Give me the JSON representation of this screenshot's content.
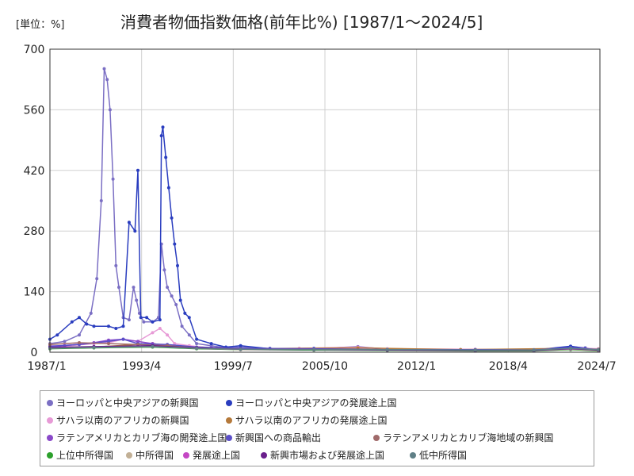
{
  "unit_label": "[単位：%]",
  "chart_data": {
    "type": "line",
    "title": "消費者物価指数価格(前年比%) [1987/1～2024/5]",
    "ylim": [
      0,
      700
    ],
    "y_ticks": [
      "0",
      "140",
      "280",
      "420",
      "560",
      "700"
    ],
    "x_tick_labels": [
      "1987/1",
      "1993/4",
      "1999/7",
      "2005/10",
      "2012/1",
      "2018/4",
      "2024/7"
    ],
    "xlim": [
      1987.0,
      2024.5
    ],
    "grid": true,
    "legend_position": "bottom",
    "series": [
      {
        "name": "ヨーロッパと中央アジアの新興国",
        "color": "#7b6fc4",
        "points": [
          [
            1987.0,
            20
          ],
          [
            1988.0,
            25
          ],
          [
            1989.0,
            40
          ],
          [
            1989.8,
            90
          ],
          [
            1990.2,
            170
          ],
          [
            1990.5,
            350
          ],
          [
            1990.7,
            655
          ],
          [
            1990.9,
            630
          ],
          [
            1991.1,
            560
          ],
          [
            1991.3,
            400
          ],
          [
            1991.5,
            200
          ],
          [
            1991.7,
            150
          ],
          [
            1992.0,
            80
          ],
          [
            1992.4,
            75
          ],
          [
            1992.7,
            150
          ],
          [
            1992.9,
            120
          ],
          [
            1993.1,
            90
          ],
          [
            1993.4,
            70
          ],
          [
            1994.0,
            70
          ],
          [
            1994.4,
            80
          ],
          [
            1994.6,
            250
          ],
          [
            1994.8,
            190
          ],
          [
            1995.0,
            150
          ],
          [
            1995.3,
            130
          ],
          [
            1995.6,
            110
          ],
          [
            1996.0,
            60
          ],
          [
            1996.5,
            40
          ],
          [
            1997.0,
            20
          ],
          [
            1998.0,
            15
          ],
          [
            1999.0,
            10
          ],
          [
            2000.0,
            12
          ],
          [
            2002.0,
            9
          ],
          [
            2005.0,
            8
          ],
          [
            2008.0,
            13
          ],
          [
            2010.0,
            7
          ],
          [
            2015.0,
            6
          ],
          [
            2020.0,
            5
          ],
          [
            2022.5,
            13
          ],
          [
            2023.5,
            10
          ],
          [
            2024.4,
            6
          ]
        ]
      },
      {
        "name": "ヨーロッパと中央アジアの発展途上国",
        "color": "#2a3dbf",
        "points": [
          [
            1987.0,
            30
          ],
          [
            1987.5,
            40
          ],
          [
            1988.5,
            70
          ],
          [
            1989.0,
            80
          ],
          [
            1989.5,
            65
          ],
          [
            1990.0,
            60
          ],
          [
            1991.0,
            60
          ],
          [
            1991.5,
            55
          ],
          [
            1992.0,
            60
          ],
          [
            1992.4,
            300
          ],
          [
            1992.8,
            280
          ],
          [
            1993.0,
            420
          ],
          [
            1993.2,
            80
          ],
          [
            1993.6,
            80
          ],
          [
            1994.0,
            70
          ],
          [
            1994.5,
            75
          ],
          [
            1994.6,
            500
          ],
          [
            1994.7,
            520
          ],
          [
            1994.9,
            450
          ],
          [
            1995.1,
            380
          ],
          [
            1995.3,
            310
          ],
          [
            1995.5,
            250
          ],
          [
            1995.7,
            200
          ],
          [
            1995.9,
            120
          ],
          [
            1996.2,
            90
          ],
          [
            1996.5,
            80
          ],
          [
            1997.0,
            30
          ],
          [
            1998.0,
            20
          ],
          [
            1999.0,
            12
          ],
          [
            2000.0,
            15
          ],
          [
            2002.0,
            8
          ],
          [
            2005.0,
            9
          ],
          [
            2008.0,
            12
          ],
          [
            2010.0,
            7
          ],
          [
            2015.0,
            6
          ],
          [
            2020.0,
            5
          ],
          [
            2022.5,
            14
          ],
          [
            2023.5,
            9
          ],
          [
            2024.4,
            5
          ]
        ]
      },
      {
        "name": "サハラ以南のアフリカの新興国",
        "color": "#e79ad6",
        "points": [
          [
            1987.0,
            15
          ],
          [
            1988.0,
            14
          ],
          [
            1990.0,
            20
          ],
          [
            1991.0,
            22
          ],
          [
            1992.0,
            30
          ],
          [
            1993.0,
            25
          ],
          [
            1994.0,
            45
          ],
          [
            1994.5,
            55
          ],
          [
            1995.0,
            40
          ],
          [
            1995.5,
            20
          ],
          [
            1996.5,
            15
          ],
          [
            1998.0,
            10
          ],
          [
            2000.0,
            8
          ],
          [
            2004.0,
            9
          ],
          [
            2008.0,
            12
          ],
          [
            2010.0,
            8
          ],
          [
            2016.0,
            7
          ],
          [
            2020.0,
            6
          ],
          [
            2022.5,
            10
          ],
          [
            2024.4,
            8
          ]
        ]
      },
      {
        "name": "サハラ以南のアフリカの発展途上国",
        "color": "#b5793a",
        "points": [
          [
            1987.0,
            10
          ],
          [
            1990.0,
            12
          ],
          [
            1994.0,
            20
          ],
          [
            1996.0,
            12
          ],
          [
            2000.0,
            8
          ],
          [
            2008.0,
            10
          ],
          [
            2015.0,
            6
          ],
          [
            2022.5,
            9
          ],
          [
            2024.4,
            7
          ]
        ]
      },
      {
        "name": "ラテンアメリカとカリブ海の開発途上国",
        "color": "#8a49c9",
        "points": [
          [
            1987.0,
            12
          ],
          [
            1988.0,
            15
          ],
          [
            1990.0,
            22
          ],
          [
            1991.0,
            28
          ],
          [
            1992.0,
            30
          ],
          [
            1993.0,
            25
          ],
          [
            1994.0,
            20
          ],
          [
            1995.0,
            15
          ],
          [
            1996.0,
            12
          ],
          [
            1998.0,
            10
          ],
          [
            2000.0,
            8
          ],
          [
            2005.0,
            7
          ],
          [
            2010.0,
            6
          ],
          [
            2016.0,
            6
          ],
          [
            2020.0,
            5
          ],
          [
            2022.5,
            10
          ],
          [
            2024.4,
            6
          ]
        ]
      },
      {
        "name": "新興国への商品輸出",
        "color": "#5b4fc9",
        "points": [
          [
            1987.0,
            14
          ],
          [
            1989.0,
            18
          ],
          [
            1991.0,
            25
          ],
          [
            1992.0,
            30
          ],
          [
            1993.0,
            20
          ],
          [
            1995.0,
            18
          ],
          [
            1997.0,
            12
          ],
          [
            2000.0,
            9
          ],
          [
            2005.0,
            8
          ],
          [
            2010.0,
            6
          ],
          [
            2016.0,
            6
          ],
          [
            2020.0,
            5
          ],
          [
            2022.5,
            11
          ],
          [
            2024.4,
            6
          ]
        ]
      },
      {
        "name": "ラテンアメリカとカリブ海地域の新興国",
        "color": "#a06a6a",
        "points": [
          [
            1987.0,
            18
          ],
          [
            1989.0,
            22
          ],
          [
            1991.0,
            20
          ],
          [
            1993.0,
            18
          ],
          [
            1995.0,
            15
          ],
          [
            1997.0,
            10
          ],
          [
            2000.0,
            7
          ],
          [
            2005.0,
            6
          ],
          [
            2010.0,
            5
          ],
          [
            2016.0,
            5
          ],
          [
            2020.0,
            4
          ],
          [
            2022.5,
            8
          ],
          [
            2024.4,
            5
          ]
        ]
      },
      {
        "name": "上位中所得国",
        "color": "#2ca02c",
        "points": [
          [
            1987.0,
            8
          ],
          [
            1990.0,
            10
          ],
          [
            1994.0,
            12
          ],
          [
            1997.0,
            8
          ],
          [
            2000.0,
            6
          ],
          [
            2005.0,
            5
          ],
          [
            2010.0,
            4
          ],
          [
            2016.0,
            3
          ],
          [
            2020.0,
            3
          ],
          [
            2022.5,
            6
          ],
          [
            2024.4,
            3
          ]
        ]
      },
      {
        "name": "中所得国",
        "color": "#c2b096",
        "points": [
          [
            1987.0,
            9
          ],
          [
            1990.0,
            11
          ],
          [
            1994.0,
            13
          ],
          [
            1997.0,
            9
          ],
          [
            2000.0,
            6
          ],
          [
            2005.0,
            6
          ],
          [
            2010.0,
            5
          ],
          [
            2016.0,
            4
          ],
          [
            2020.0,
            4
          ],
          [
            2022.5,
            7
          ],
          [
            2024.4,
            4
          ]
        ]
      },
      {
        "name": "発展途上国",
        "color": "#c447c4",
        "points": [
          [
            1987.0,
            10
          ],
          [
            1990.0,
            12
          ],
          [
            1994.0,
            14
          ],
          [
            1997.0,
            9
          ],
          [
            2000.0,
            7
          ],
          [
            2005.0,
            6
          ],
          [
            2010.0,
            5
          ],
          [
            2016.0,
            4
          ],
          [
            2020.0,
            4
          ],
          [
            2022.5,
            8
          ],
          [
            2024.4,
            5
          ]
        ]
      },
      {
        "name": "新興市場および発展途上国",
        "color": "#6a1f8c",
        "points": [
          [
            1987.0,
            11
          ],
          [
            1990.0,
            13
          ],
          [
            1994.0,
            15
          ],
          [
            1997.0,
            10
          ],
          [
            2000.0,
            7
          ],
          [
            2005.0,
            6
          ],
          [
            2010.0,
            5
          ],
          [
            2016.0,
            4
          ],
          [
            2020.0,
            4
          ],
          [
            2022.5,
            8
          ],
          [
            2024.4,
            5
          ]
        ]
      },
      {
        "name": "低中所得国",
        "color": "#5f7f86",
        "points": [
          [
            1987.0,
            9
          ],
          [
            1990.0,
            11
          ],
          [
            1994.0,
            13
          ],
          [
            1997.0,
            9
          ],
          [
            2000.0,
            7
          ],
          [
            2005.0,
            6
          ],
          [
            2010.0,
            6
          ],
          [
            2016.0,
            5
          ],
          [
            2020.0,
            5
          ],
          [
            2022.5,
            9
          ],
          [
            2024.4,
            6
          ]
        ]
      }
    ]
  }
}
